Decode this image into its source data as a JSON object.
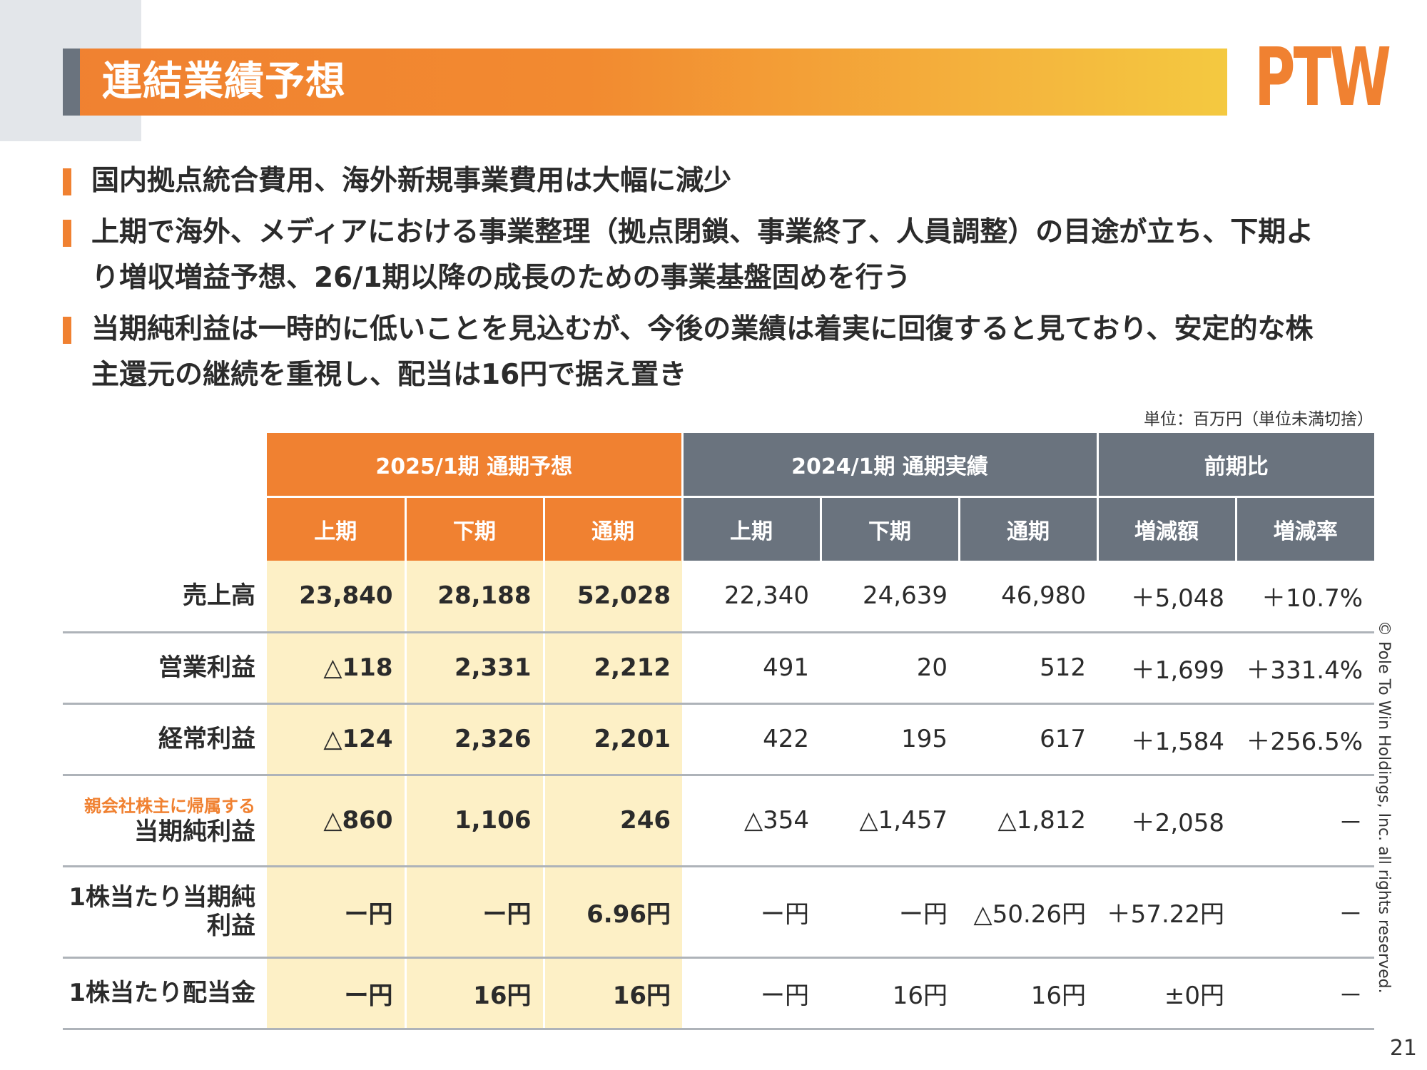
{
  "header": {
    "title": "連結業績予想",
    "logo_text": "PTW"
  },
  "bullets": [
    "国内拠点統合費用、海外新規事業費用は大幅に減少",
    "上期で海外、メディアにおける事業整理（拠点閉鎖、事業終了、人員調整）の目途が立ち、下期より増収増益予想、26/1期以降の成長のための事業基盤固めを行う",
    "当期純利益は一時的に低いことを見込むが、今後の業績は着実に回復すると見ており、安定的な株主還元の継続を重視し、配当は16円で据え置き"
  ],
  "unit_note": "単位：百万円（単位未満切捨）",
  "table": {
    "group_headers": [
      "2025/1期 通期予想",
      "2024/1期 通期実績",
      "前期比"
    ],
    "sub_headers": [
      "上期",
      "下期",
      "通期",
      "上期",
      "下期",
      "通期",
      "増減額",
      "増減率"
    ],
    "rows": [
      {
        "label": "売上高",
        "sublabel": "",
        "values": [
          "23,840",
          "28,188",
          "52,028",
          "22,340",
          "24,639",
          "46,980",
          "＋5,048",
          "＋10.7%"
        ]
      },
      {
        "label": "営業利益",
        "sublabel": "",
        "values": [
          "△118",
          "2,331",
          "2,212",
          "491",
          "20",
          "512",
          "＋1,699",
          "＋331.4%"
        ]
      },
      {
        "label": "経常利益",
        "sublabel": "",
        "values": [
          "△124",
          "2,326",
          "2,201",
          "422",
          "195",
          "617",
          "＋1,584",
          "＋256.5%"
        ]
      },
      {
        "label": "当期純利益",
        "sublabel": "親会社株主に帰属する",
        "values": [
          "△860",
          "1,106",
          "246",
          "△354",
          "△1,457",
          "△1,812",
          "＋2,058",
          "－"
        ]
      },
      {
        "label": "1株当たり当期純利益",
        "sublabel": "",
        "values": [
          "ー円",
          "ー円",
          "6.96円",
          "ー円",
          "ー円",
          "△50.26円",
          "＋57.22円",
          "－"
        ]
      },
      {
        "label": "1株当たり配当金",
        "sublabel": "",
        "values": [
          "ー円",
          "16円",
          "16円",
          "ー円",
          "16円",
          "16円",
          "±0円",
          "－"
        ]
      }
    ]
  },
  "footer": {
    "copyright": "© Pole To Win Holdings, Inc. all rights reserved.",
    "page_number": "21"
  },
  "colors": {
    "accent_orange": "#f08131",
    "header_gray": "#6a737e",
    "forecast_fill": "#fdf0c6"
  }
}
